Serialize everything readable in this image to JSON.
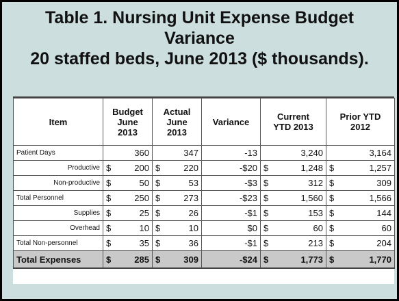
{
  "title": {
    "line1": "Table 1.  Nursing Unit Expense Budget",
    "line2": "Variance",
    "line3": "20 staffed beds, June 2013 ($ thousands)."
  },
  "table": {
    "headers": {
      "item": "Item",
      "budget": [
        "Budget",
        "June",
        "2013"
      ],
      "actual": [
        "Actual",
        "June",
        "2013"
      ],
      "variance": "Variance",
      "current": [
        "Current",
        "YTD 2013"
      ],
      "prior": [
        "Prior YTD",
        "2012"
      ]
    },
    "rows": [
      {
        "item": "Patient Days",
        "budget": [
          "",
          "360"
        ],
        "actual": [
          "",
          "347"
        ],
        "variance": "-13",
        "current": [
          "",
          "3,240"
        ],
        "prior": [
          "",
          "3,164"
        ]
      },
      {
        "item": "Productive",
        "budget": [
          "$",
          "200"
        ],
        "actual": [
          "$",
          "220"
        ],
        "variance": "-$20",
        "current": [
          "$",
          "1,248"
        ],
        "prior": [
          "$",
          "1,257"
        ]
      },
      {
        "item": "Non-productive",
        "budget": [
          "$",
          "50"
        ],
        "actual": [
          "$",
          "53"
        ],
        "variance": "-$3",
        "current": [
          "$",
          "312"
        ],
        "prior": [
          "$",
          "309"
        ]
      },
      {
        "item": "Total Personnel",
        "budget": [
          "$",
          "250"
        ],
        "actual": [
          "$",
          "273"
        ],
        "variance": "-$23",
        "current": [
          "$",
          "1,560"
        ],
        "prior": [
          "$",
          "1,566"
        ]
      },
      {
        "item": "Supplies",
        "budget": [
          "$",
          "25"
        ],
        "actual": [
          "$",
          "26"
        ],
        "variance": "-$1",
        "current": [
          "$",
          "153"
        ],
        "prior": [
          "$",
          "144"
        ]
      },
      {
        "item": "Overhead",
        "budget": [
          "$",
          "10"
        ],
        "actual": [
          "$",
          "10"
        ],
        "variance": "$0",
        "current": [
          "$",
          "60"
        ],
        "prior": [
          "$",
          "60"
        ]
      },
      {
        "item": "Total Non-personnel",
        "budget": [
          "$",
          "35"
        ],
        "actual": [
          "$",
          "36"
        ],
        "variance": "-$1",
        "current": [
          "$",
          "213"
        ],
        "prior": [
          "$",
          "204"
        ]
      }
    ],
    "total": {
      "item": "Total Expenses",
      "budget": [
        "$",
        "285"
      ],
      "actual": [
        "$",
        "309"
      ],
      "variance": "-$24",
      "current": [
        "$",
        "1,773"
      ],
      "prior": [
        "$",
        "1,770"
      ]
    }
  }
}
